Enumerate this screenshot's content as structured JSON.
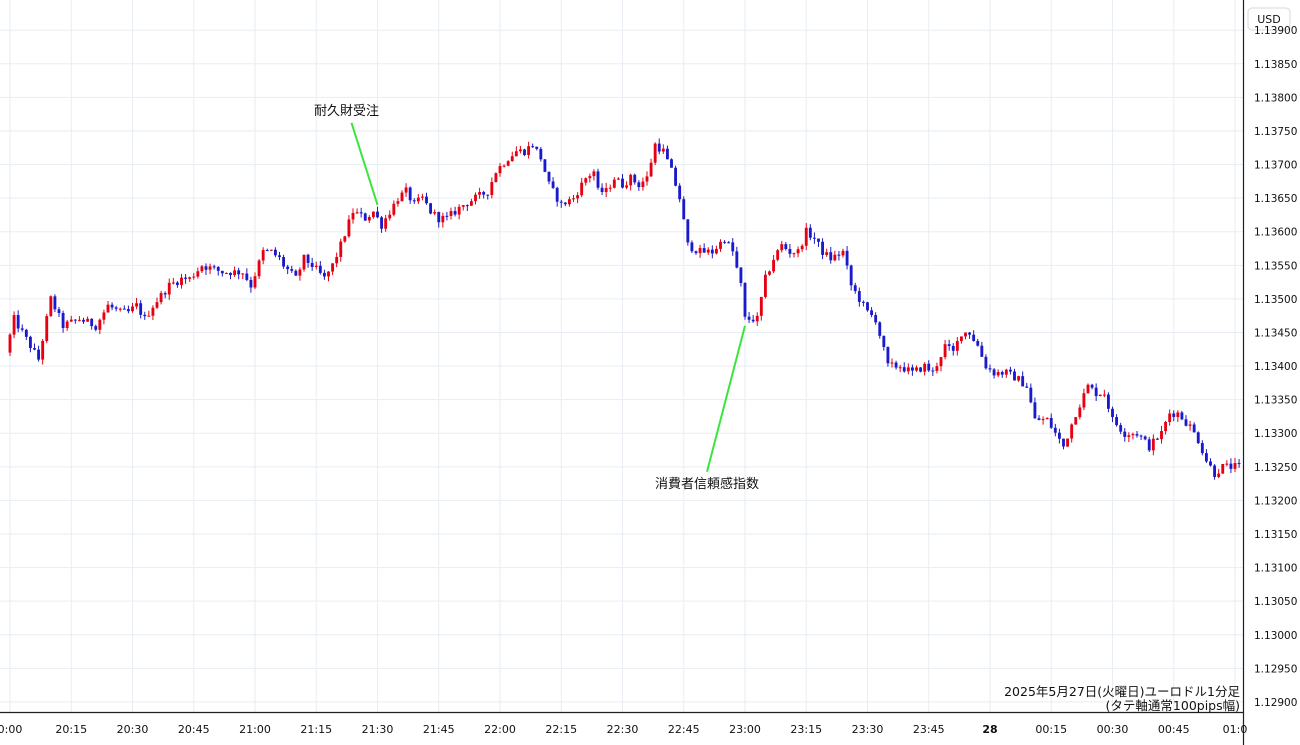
{
  "chart_data": {
    "type": "candlestick",
    "currency": "USD",
    "caption_line1": "2025年5月27日(火曜日)ユーロドル1分足",
    "caption_line2": "(タテ軸通常100pips幅)",
    "x_ticks": [
      "0:00",
      "20:15",
      "20:30",
      "20:45",
      "21:00",
      "21:15",
      "21:30",
      "21:45",
      "22:00",
      "22:15",
      "22:30",
      "22:45",
      "23:00",
      "23:15",
      "23:30",
      "23:45",
      "28",
      "00:15",
      "00:30",
      "00:45",
      "01:0"
    ],
    "y_ticks": [
      "1.12900",
      "1.12950",
      "1.13000",
      "1.13050",
      "1.13100",
      "1.13150",
      "1.13200",
      "1.13250",
      "1.13300",
      "1.13350",
      "1.13400",
      "1.13450",
      "1.13500",
      "1.13550",
      "1.13600",
      "1.13650",
      "1.13700",
      "1.13750",
      "1.13800",
      "1.13850",
      "1.13900"
    ],
    "ylim": [
      1.12885,
      1.13945
    ],
    "colors": {
      "up": "#e60012",
      "down": "#1a1acc",
      "annotation_line": "#39e639",
      "grid": "#e7edf3"
    },
    "annotations": [
      {
        "text": "耐久財受注",
        "time": "21:30",
        "price": 1.1364
      },
      {
        "text": "消費者信頼感指数",
        "time": "23:00",
        "price": 1.1346
      }
    ],
    "anchors": [
      {
        "t": "20:00",
        "p": 1.1342
      },
      {
        "t": "20:02",
        "p": 1.1347
      },
      {
        "t": "20:05",
        "p": 1.1344
      },
      {
        "t": "20:08",
        "p": 1.1341
      },
      {
        "t": "20:10",
        "p": 1.1347
      },
      {
        "t": "20:11",
        "p": 1.135
      },
      {
        "t": "20:14",
        "p": 1.1346
      },
      {
        "t": "20:18",
        "p": 1.1347
      },
      {
        "t": "20:22",
        "p": 1.1346
      },
      {
        "t": "20:25",
        "p": 1.1349
      },
      {
        "t": "20:28",
        "p": 1.1348
      },
      {
        "t": "20:30",
        "p": 1.1348
      },
      {
        "t": "20:32",
        "p": 1.1349
      },
      {
        "t": "20:34",
        "p": 1.1347
      },
      {
        "t": "20:36",
        "p": 1.1349
      },
      {
        "t": "20:40",
        "p": 1.1352
      },
      {
        "t": "20:43",
        "p": 1.1353
      },
      {
        "t": "20:45",
        "p": 1.1353
      },
      {
        "t": "20:48",
        "p": 1.1355
      },
      {
        "t": "20:53",
        "p": 1.1354
      },
      {
        "t": "20:55",
        "p": 1.1354
      },
      {
        "t": "20:58",
        "p": 1.1354
      },
      {
        "t": "21:00",
        "p": 1.1352
      },
      {
        "t": "21:03",
        "p": 1.1357
      },
      {
        "t": "21:05",
        "p": 1.1357
      },
      {
        "t": "21:07",
        "p": 1.1356
      },
      {
        "t": "21:08",
        "p": 1.1355
      },
      {
        "t": "21:11",
        "p": 1.1353
      },
      {
        "t": "21:13",
        "p": 1.1356
      },
      {
        "t": "21:15",
        "p": 1.1355
      },
      {
        "t": "21:18",
        "p": 1.1353
      },
      {
        "t": "21:20",
        "p": 1.1355
      },
      {
        "t": "21:22",
        "p": 1.1358
      },
      {
        "t": "21:25",
        "p": 1.1363
      },
      {
        "t": "21:28",
        "p": 1.1362
      },
      {
        "t": "21:30",
        "p": 1.1363
      },
      {
        "t": "21:32",
        "p": 1.1361
      },
      {
        "t": "21:34",
        "p": 1.1363
      },
      {
        "t": "21:36",
        "p": 1.1365
      },
      {
        "t": "21:38",
        "p": 1.1366
      },
      {
        "t": "21:40",
        "p": 1.1364
      },
      {
        "t": "21:42",
        "p": 1.1365
      },
      {
        "t": "21:44",
        "p": 1.1363
      },
      {
        "t": "21:46",
        "p": 1.1362
      },
      {
        "t": "21:48",
        "p": 1.1362
      },
      {
        "t": "21:50",
        "p": 1.1363
      },
      {
        "t": "21:52",
        "p": 1.1364
      },
      {
        "t": "21:55",
        "p": 1.1365
      },
      {
        "t": "21:58",
        "p": 1.1366
      },
      {
        "t": "22:00",
        "p": 1.1369
      },
      {
        "t": "22:03",
        "p": 1.1371
      },
      {
        "t": "22:05",
        "p": 1.1372
      },
      {
        "t": "22:07",
        "p": 1.1372
      },
      {
        "t": "22:09",
        "p": 1.1373
      },
      {
        "t": "22:11",
        "p": 1.1371
      },
      {
        "t": "22:13",
        "p": 1.1367
      },
      {
        "t": "22:16",
        "p": 1.1364
      },
      {
        "t": "22:19",
        "p": 1.1365
      },
      {
        "t": "22:22",
        "p": 1.1368
      },
      {
        "t": "22:24",
        "p": 1.1369
      },
      {
        "t": "22:25",
        "p": 1.1366
      },
      {
        "t": "22:27",
        "p": 1.1366
      },
      {
        "t": "22:29",
        "p": 1.1368
      },
      {
        "t": "22:31",
        "p": 1.1367
      },
      {
        "t": "22:33",
        "p": 1.1368
      },
      {
        "t": "22:35",
        "p": 1.1367
      },
      {
        "t": "22:37",
        "p": 1.1368
      },
      {
        "t": "22:39",
        "p": 1.1373
      },
      {
        "t": "22:41",
        "p": 1.1372
      },
      {
        "t": "22:43",
        "p": 1.1369
      },
      {
        "t": "22:45",
        "p": 1.1365
      },
      {
        "t": "22:47",
        "p": 1.1358
      },
      {
        "t": "22:50",
        "p": 1.1357
      },
      {
        "t": "22:53",
        "p": 1.1357
      },
      {
        "t": "22:56",
        "p": 1.1359
      },
      {
        "t": "22:58",
        "p": 1.1357
      },
      {
        "t": "23:00",
        "p": 1.1352
      },
      {
        "t": "23:01",
        "p": 1.1347
      },
      {
        "t": "23:04",
        "p": 1.1347
      },
      {
        "t": "23:06",
        "p": 1.1353
      },
      {
        "t": "23:08",
        "p": 1.1356
      },
      {
        "t": "23:10",
        "p": 1.1358
      },
      {
        "t": "23:12",
        "p": 1.1357
      },
      {
        "t": "23:14",
        "p": 1.1357
      },
      {
        "t": "23:16",
        "p": 1.136
      },
      {
        "t": "23:18",
        "p": 1.1359
      },
      {
        "t": "23:20",
        "p": 1.1357
      },
      {
        "t": "23:22",
        "p": 1.1356
      },
      {
        "t": "23:25",
        "p": 1.1357
      },
      {
        "t": "23:27",
        "p": 1.1352
      },
      {
        "t": "23:29",
        "p": 1.135
      },
      {
        "t": "23:31",
        "p": 1.1348
      },
      {
        "t": "23:33",
        "p": 1.1347
      },
      {
        "t": "23:36",
        "p": 1.134
      },
      {
        "t": "23:39",
        "p": 1.134
      },
      {
        "t": "23:42",
        "p": 1.1339
      },
      {
        "t": "23:45",
        "p": 1.134
      },
      {
        "t": "23:47",
        "p": 1.1339
      },
      {
        "t": "23:50",
        "p": 1.1343
      },
      {
        "t": "23:52",
        "p": 1.1342
      },
      {
        "t": "23:54",
        "p": 1.1345
      },
      {
        "t": "23:56",
        "p": 1.1345
      },
      {
        "t": "23:58",
        "p": 1.1343
      },
      {
        "t": "00:00",
        "p": 1.134
      },
      {
        "t": "00:02",
        "p": 1.1339
      },
      {
        "t": "00:05",
        "p": 1.1339
      },
      {
        "t": "00:08",
        "p": 1.1338
      },
      {
        "t": "00:10",
        "p": 1.1337
      },
      {
        "t": "00:12",
        "p": 1.1332
      },
      {
        "t": "00:15",
        "p": 1.1332
      },
      {
        "t": "00:17",
        "p": 1.133
      },
      {
        "t": "00:19",
        "p": 1.1328
      },
      {
        "t": "00:22",
        "p": 1.1333
      },
      {
        "t": "00:25",
        "p": 1.1337
      },
      {
        "t": "00:27",
        "p": 1.1336
      },
      {
        "t": "00:29",
        "p": 1.1336
      },
      {
        "t": "00:31",
        "p": 1.1332
      },
      {
        "t": "00:34",
        "p": 1.133
      },
      {
        "t": "00:37",
        "p": 1.133
      },
      {
        "t": "00:40",
        "p": 1.1328
      },
      {
        "t": "00:43",
        "p": 1.133
      },
      {
        "t": "00:45",
        "p": 1.1333
      },
      {
        "t": "00:47",
        "p": 1.1333
      },
      {
        "t": "00:50",
        "p": 1.1331
      },
      {
        "t": "00:52",
        "p": 1.1329
      },
      {
        "t": "00:54",
        "p": 1.1326
      },
      {
        "t": "00:56",
        "p": 1.1324
      },
      {
        "t": "00:58",
        "p": 1.1325
      },
      {
        "t": "01:01",
        "p": 1.1325
      }
    ]
  }
}
